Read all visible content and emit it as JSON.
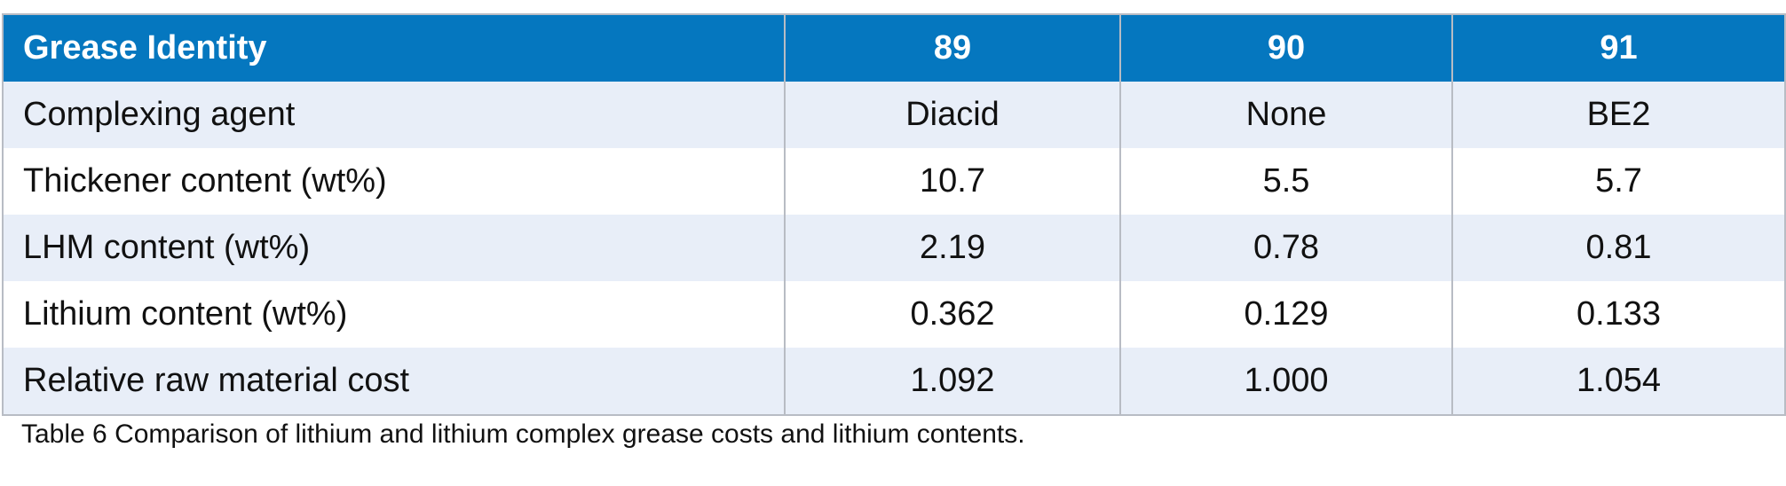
{
  "table": {
    "header": {
      "label": "Grease Identity",
      "columns": [
        "89",
        "90",
        "91"
      ]
    },
    "rows": [
      {
        "label": "Complexing agent",
        "values": [
          "Diacid",
          "None",
          "BE2"
        ]
      },
      {
        "label": "Thickener content (wt%)",
        "values": [
          "10.7",
          "5.5",
          "5.7"
        ]
      },
      {
        "label": "LHM content (wt%)",
        "values": [
          "2.19",
          "0.78",
          "0.81"
        ]
      },
      {
        "label": "Lithium content (wt%)",
        "values": [
          "0.362",
          "0.129",
          "0.133"
        ]
      },
      {
        "label": "Relative raw material cost",
        "values": [
          "1.092",
          "1.000",
          "1.054"
        ]
      }
    ]
  },
  "caption": "Table 6 Comparison of lithium and lithium complex grease costs and lithium contents.",
  "colors": {
    "header_bg": "#0577bf",
    "header_text": "#ffffff",
    "row_alt_bg": "#e8eef8",
    "row_bg": "#ffffff",
    "grid": "#b8bcc4"
  }
}
